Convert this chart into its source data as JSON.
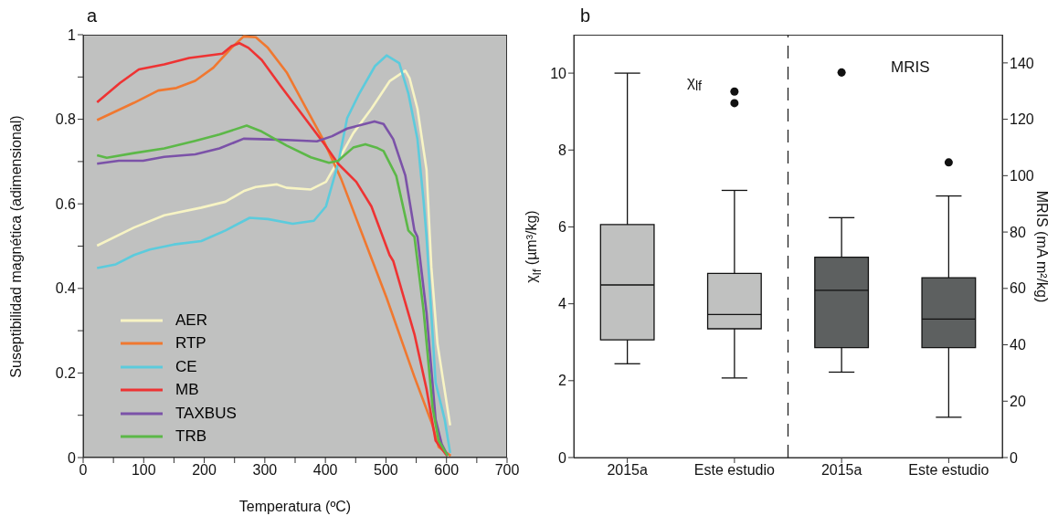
{
  "chart_data": [
    {
      "type": "line",
      "title": "a",
      "xlabel": "Temperatura (ºC)",
      "ylabel": "Suseptibilidad magnética (adimensional)",
      "xlim": [
        0,
        700
      ],
      "xticks": [
        0,
        {
          "value": 50,
          "label": null
        },
        100,
        {
          "value": 150,
          "label": null
        },
        200,
        {
          "value": 250,
          "label": null
        },
        300,
        {
          "value": 350,
          "label": null
        },
        400,
        {
          "value": 450,
          "label": null
        },
        500,
        {
          "value": 550,
          "label": null
        },
        600,
        {
          "value": 650,
          "label": null
        },
        700
      ],
      "ylim": [
        0,
        1
      ],
      "yticks": [
        0,
        {
          "value": 0.1,
          "label": null
        },
        0.2,
        {
          "value": 0.3,
          "label": null
        },
        0.4,
        {
          "value": 0.5,
          "label": null
        },
        0.6,
        {
          "value": 0.7,
          "label": null
        },
        0.8,
        {
          "value": 0.9,
          "label": null
        },
        1
      ],
      "legend": "bottom left",
      "series": [
        {
          "name": "AER",
          "color": "#f7f4c4",
          "x": [
            23,
            84,
            134,
            195,
            235,
            265,
            285,
            320,
            336,
            376,
            401,
            421,
            446,
            476,
            506,
            532,
            539,
            552,
            567,
            575,
            585,
            595,
            606
          ],
          "values": [
            0.501,
            0.544,
            0.573,
            0.591,
            0.605,
            0.63,
            0.64,
            0.646,
            0.638,
            0.634,
            0.652,
            0.702,
            0.767,
            0.825,
            0.89,
            0.915,
            0.897,
            0.825,
            0.681,
            0.45,
            0.27,
            0.177,
            0.076
          ]
        },
        {
          "name": "RTP",
          "color": "#f07830",
          "x": [
            23,
            84,
            124,
            154,
            185,
            215,
            245,
            265,
            285,
            305,
            336,
            366,
            396,
            426,
            451,
            474,
            501,
            547,
            577,
            587,
            607
          ],
          "values": [
            0.798,
            0.839,
            0.868,
            0.874,
            0.891,
            0.922,
            0.969,
            0.996,
            0.994,
            0.969,
            0.911,
            0.832,
            0.753,
            0.659,
            0.565,
            0.479,
            0.378,
            0.191,
            0.076,
            0.025,
            0.004
          ]
        },
        {
          "name": "CE",
          "color": "#5ccbdc",
          "x": [
            23,
            54,
            84,
            110,
            150,
            195,
            235,
            275,
            305,
            346,
            381,
            401,
            421,
            436,
            456,
            482,
            501,
            522,
            537,
            552,
            562,
            567,
            582,
            597,
            606
          ],
          "values": [
            0.448,
            0.457,
            0.479,
            0.492,
            0.504,
            0.512,
            0.537,
            0.567,
            0.564,
            0.553,
            0.56,
            0.594,
            0.695,
            0.803,
            0.861,
            0.926,
            0.951,
            0.933,
            0.861,
            0.753,
            0.609,
            0.522,
            0.177,
            0.09,
            0.011
          ]
        },
        {
          "name": "MB",
          "color": "#ee3333",
          "x": [
            23,
            61,
            92,
            134,
            175,
            230,
            245,
            258,
            273,
            295,
            326,
            366,
            396,
            421,
            451,
            476,
            506,
            512,
            547,
            567,
            582,
            601
          ],
          "values": [
            0.84,
            0.886,
            0.918,
            0.93,
            0.945,
            0.955,
            0.973,
            0.98,
            0.969,
            0.94,
            0.879,
            0.803,
            0.746,
            0.695,
            0.652,
            0.594,
            0.479,
            0.465,
            0.292,
            0.162,
            0.04,
            0.004
          ]
        },
        {
          "name": "TAXBUS",
          "color": "#7b52a8",
          "x": [
            23,
            59,
            99,
            134,
            185,
            225,
            265,
            295,
            336,
            386,
            411,
            436,
            481,
            496,
            512,
            532,
            547,
            552,
            567,
            582,
            592,
            602
          ],
          "values": [
            0.695,
            0.702,
            0.702,
            0.711,
            0.717,
            0.731,
            0.754,
            0.753,
            0.751,
            0.748,
            0.76,
            0.778,
            0.795,
            0.789,
            0.753,
            0.667,
            0.537,
            0.522,
            0.342,
            0.09,
            0.032,
            0.004
          ]
        },
        {
          "name": "TRB",
          "color": "#5cb848",
          "x": [
            23,
            39,
            84,
            134,
            185,
            225,
            270,
            295,
            336,
            376,
            406,
            421,
            446,
            466,
            486,
            496,
            517,
            537,
            547,
            562,
            577,
            587,
            602
          ],
          "values": [
            0.715,
            0.709,
            0.72,
            0.731,
            0.749,
            0.764,
            0.785,
            0.771,
            0.738,
            0.71,
            0.697,
            0.702,
            0.733,
            0.741,
            0.732,
            0.725,
            0.666,
            0.537,
            0.522,
            0.349,
            0.119,
            0.04,
            0.004
          ]
        }
      ]
    },
    {
      "type": "box",
      "title": "b",
      "categories": [
        "2015a",
        "Este estudio",
        "2015a",
        "Este estudio"
      ],
      "ylabel": "χ$_{lf}$ (µm³/kg)",
      "y2label": "MRIS (mA m²/kg)",
      "ylim": [
        0,
        11
      ],
      "yticks": [
        0,
        2,
        4,
        6,
        8,
        10
      ],
      "y2lim": [
        0,
        150
      ],
      "y2ticks": [
        0,
        20,
        40,
        60,
        80,
        100,
        120,
        140
      ],
      "annotations": [
        "χ$_{lf}$",
        "MRIS"
      ],
      "series": [
        {
          "color": "#c0c1c0",
          "boxes": [
            {
              "low": 2.44,
              "q1": 3.06,
              "median": 4.49,
              "q3": 6.06,
              "high": 10.0
            },
            {
              "low": 2.07,
              "q1": 3.35,
              "median": 3.72,
              "q3": 4.79,
              "high": 6.95,
              "outliers": [
                9.52,
                9.22
              ]
            },
            null,
            null
          ]
        },
        {
          "color": "#5d6060",
          "axis": "y2",
          "boxes": [
            null,
            null,
            {
              "low": 30.3,
              "q1": 39.0,
              "median": 59.3,
              "q3": 71.1,
              "high": 85.1,
              "outliers": [
                136.6
              ]
            },
            {
              "low": 14.3,
              "q1": 39.0,
              "median": 49.1,
              "q3": 63.8,
              "high": 92.8,
              "outliers": [
                104.7
              ]
            }
          ]
        }
      ]
    }
  ]
}
